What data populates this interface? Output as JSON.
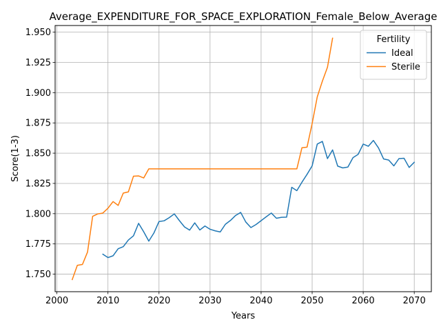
{
  "chart_data": {
    "type": "line",
    "title": "Average_EXPENDITURE_FOR_SPACE_EXPLORATION_Female_Below_Average",
    "xlabel": "Years",
    "ylabel": "Score(1-3)",
    "xlim": [
      1999.65,
      2073.35
    ],
    "ylim": [
      1.7355,
      1.9555
    ],
    "xticks": [
      2000,
      2010,
      2020,
      2030,
      2040,
      2050,
      2060,
      2070
    ],
    "yticks": [
      1.75,
      1.775,
      1.8,
      1.825,
      1.85,
      1.875,
      1.9,
      1.925,
      1.95
    ],
    "ytick_labels": [
      "1.750",
      "1.775",
      "1.800",
      "1.825",
      "1.850",
      "1.875",
      "1.900",
      "1.925",
      "1.950"
    ],
    "grid": true,
    "legend": {
      "title": "Fertility",
      "position": "top-right"
    },
    "series": [
      {
        "name": "Ideal",
        "color": "#1f77b4",
        "x": [
          2009,
          2010,
          2011,
          2012,
          2013,
          2014,
          2015,
          2016,
          2017,
          2018,
          2019,
          2020,
          2021,
          2022,
          2023,
          2024,
          2025,
          2026,
          2027,
          2028,
          2029,
          2030,
          2031,
          2032,
          2033,
          2034,
          2035,
          2036,
          2037,
          2038,
          2039,
          2040,
          2041,
          2042,
          2043,
          2044,
          2045,
          2046,
          2047,
          2048,
          2049,
          2050,
          2051,
          2052,
          2053,
          2054,
          2055,
          2056,
          2057,
          2058,
          2059,
          2060,
          2061,
          2062,
          2063,
          2064,
          2065,
          2066,
          2067,
          2068,
          2069,
          2070
        ],
        "values": [
          1.7665,
          1.7637,
          1.7652,
          1.771,
          1.7727,
          1.7782,
          1.7817,
          1.792,
          1.785,
          1.7773,
          1.784,
          1.7935,
          1.7941,
          1.7967,
          1.7998,
          1.7942,
          1.789,
          1.7864,
          1.7924,
          1.7865,
          1.7898,
          1.7871,
          1.7858,
          1.7849,
          1.7912,
          1.7944,
          1.7985,
          1.801,
          1.7931,
          1.7885,
          1.791,
          1.7942,
          1.7974,
          1.8005,
          1.7962,
          1.797,
          1.7971,
          1.8218,
          1.819,
          1.826,
          1.8325,
          1.8395,
          1.8575,
          1.8597,
          1.8455,
          1.8527,
          1.8393,
          1.8378,
          1.8385,
          1.8463,
          1.849,
          1.8575,
          1.8557,
          1.8605,
          1.8543,
          1.8452,
          1.8443,
          1.8395,
          1.8455,
          1.8458,
          1.8382,
          1.8425
        ]
      },
      {
        "name": "Sterile",
        "color": "#ff7f0e",
        "x": [
          2003,
          2004,
          2005,
          2006,
          2007,
          2008,
          2009,
          2010,
          2011,
          2012,
          2013,
          2014,
          2015,
          2016,
          2017,
          2018,
          2019,
          2020,
          2021,
          2022,
          2023,
          2024,
          2025,
          2026,
          2027,
          2028,
          2029,
          2030,
          2031,
          2032,
          2033,
          2034,
          2035,
          2036,
          2037,
          2038,
          2039,
          2040,
          2041,
          2042,
          2043,
          2044,
          2045,
          2046,
          2047,
          2048,
          2049,
          2050,
          2051,
          2052,
          2053,
          2054
        ],
        "values": [
          1.7455,
          1.7573,
          1.758,
          1.7683,
          1.7978,
          1.7998,
          1.8005,
          1.8045,
          1.81,
          1.8068,
          1.817,
          1.818,
          1.831,
          1.8312,
          1.8295,
          1.837,
          1.837,
          1.837,
          1.837,
          1.837,
          1.837,
          1.837,
          1.837,
          1.837,
          1.837,
          1.837,
          1.837,
          1.837,
          1.837,
          1.837,
          1.837,
          1.837,
          1.837,
          1.837,
          1.837,
          1.837,
          1.837,
          1.837,
          1.837,
          1.837,
          1.837,
          1.837,
          1.837,
          1.837,
          1.837,
          1.8545,
          1.855,
          1.8745,
          1.8965,
          1.9095,
          1.921,
          1.945
        ]
      }
    ]
  }
}
